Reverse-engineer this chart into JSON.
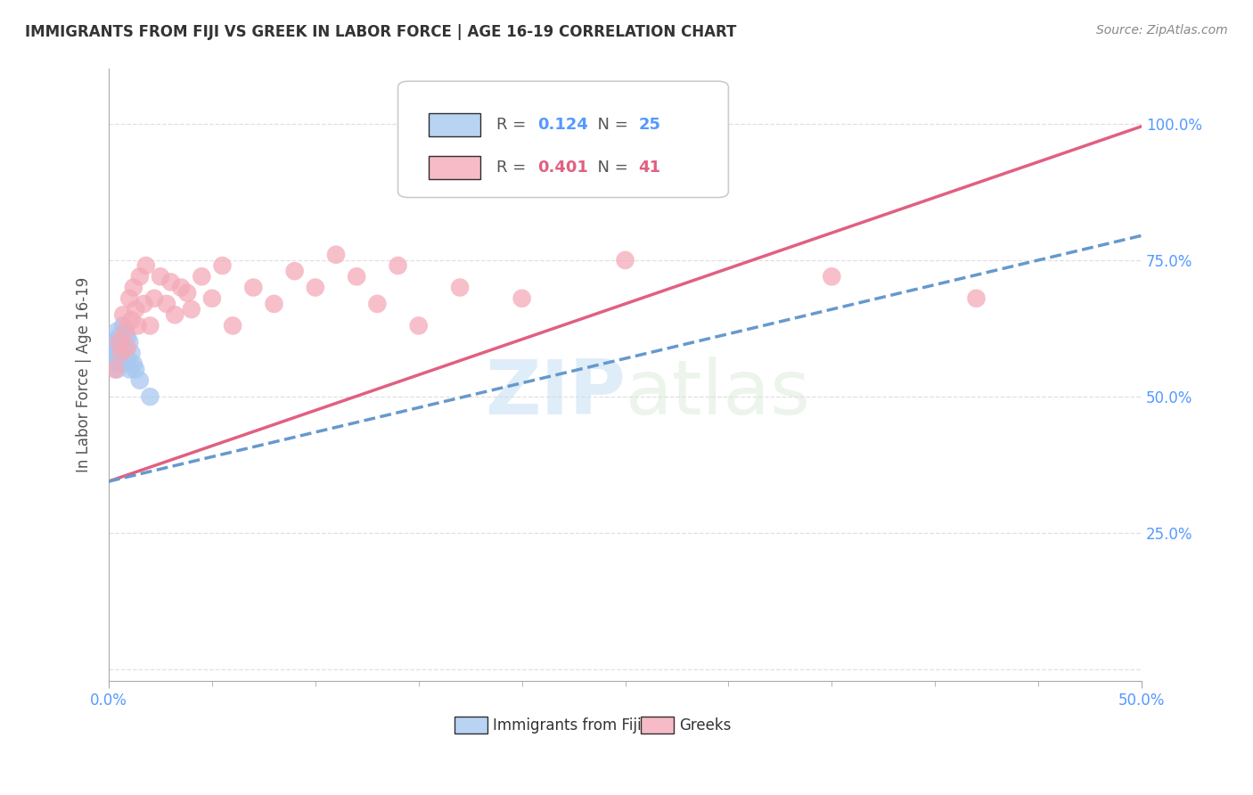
{
  "title": "IMMIGRANTS FROM FIJI VS GREEK IN LABOR FORCE | AGE 16-19 CORRELATION CHART",
  "source": "Source: ZipAtlas.com",
  "ylabel": "In Labor Force | Age 16-19",
  "xlim": [
    0.0,
    0.5
  ],
  "ylim": [
    -0.02,
    1.1
  ],
  "xtick_positions": [
    0.0,
    0.5
  ],
  "xticklabels": [
    "0.0%",
    "50.0%"
  ],
  "yticks": [
    0.0,
    0.25,
    0.5,
    0.75,
    1.0
  ],
  "yticklabels": [
    "",
    "25.0%",
    "50.0%",
    "75.0%",
    "100.0%"
  ],
  "fiji_color": "#a8c8f0",
  "greek_color": "#f4aab8",
  "fiji_R": 0.124,
  "fiji_N": 25,
  "greek_R": 0.401,
  "greek_N": 41,
  "fiji_x": [
    0.002,
    0.003,
    0.003,
    0.003,
    0.004,
    0.004,
    0.004,
    0.005,
    0.005,
    0.006,
    0.006,
    0.007,
    0.007,
    0.007,
    0.008,
    0.008,
    0.009,
    0.009,
    0.01,
    0.01,
    0.011,
    0.012,
    0.013,
    0.015,
    0.02
  ],
  "fiji_y": [
    0.57,
    0.6,
    0.58,
    0.56,
    0.62,
    0.59,
    0.55,
    0.61,
    0.58,
    0.6,
    0.57,
    0.63,
    0.59,
    0.56,
    0.62,
    0.58,
    0.61,
    0.57,
    0.6,
    0.55,
    0.58,
    0.56,
    0.55,
    0.53,
    0.5
  ],
  "greek_x": [
    0.003,
    0.005,
    0.006,
    0.007,
    0.008,
    0.009,
    0.01,
    0.011,
    0.012,
    0.013,
    0.014,
    0.015,
    0.017,
    0.018,
    0.02,
    0.022,
    0.025,
    0.028,
    0.03,
    0.032,
    0.035,
    0.038,
    0.04,
    0.045,
    0.05,
    0.055,
    0.06,
    0.07,
    0.08,
    0.09,
    0.1,
    0.11,
    0.12,
    0.13,
    0.14,
    0.15,
    0.17,
    0.2,
    0.25,
    0.35,
    0.42
  ],
  "greek_y": [
    0.55,
    0.6,
    0.58,
    0.65,
    0.62,
    0.59,
    0.68,
    0.64,
    0.7,
    0.66,
    0.63,
    0.72,
    0.67,
    0.74,
    0.63,
    0.68,
    0.72,
    0.67,
    0.71,
    0.65,
    0.7,
    0.69,
    0.66,
    0.72,
    0.68,
    0.74,
    0.63,
    0.7,
    0.67,
    0.73,
    0.7,
    0.76,
    0.72,
    0.67,
    0.74,
    0.63,
    0.7,
    0.68,
    0.75,
    0.72,
    0.68
  ],
  "watermark_zip": "ZIP",
  "watermark_atlas": "atlas",
  "legend_fiji_label": "Immigrants from Fiji",
  "legend_greek_label": "Greeks",
  "fiji_line_color": "#6699cc",
  "greek_line_color": "#e06080",
  "fiji_line_intercept": 0.345,
  "fiji_line_slope": 0.9,
  "greek_line_intercept": 0.345,
  "greek_line_slope": 1.3,
  "background_color": "#ffffff",
  "grid_color": "#e0e0e0",
  "right_tick_color": "#5599ff"
}
